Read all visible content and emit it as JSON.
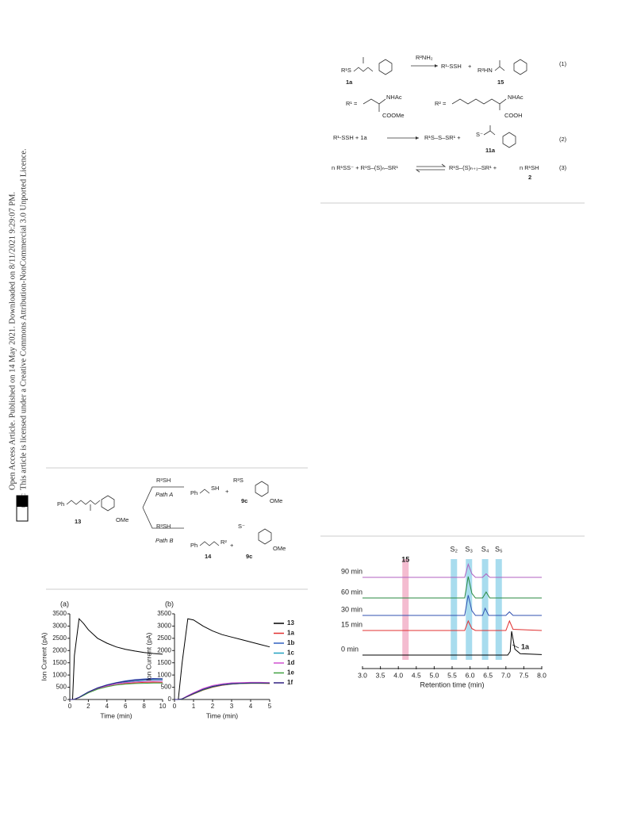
{
  "side_note": {
    "line1": "Open Access Article. Published on 14 May 2021. Downloaded on 8/11/2021 9:29:07 PM.",
    "line2": "This article is licensed under a Creative Commons Attribution-NonCommercial 3.0 Unported Licence.",
    "badge": "BY-NC"
  },
  "scheme_top": {
    "eq1": {
      "reactant": "R¹S",
      "reactant_id": "1a",
      "reagent": "R²NH₂",
      "product1": "R¹-SSH",
      "plus": "+",
      "product2": "R²HN",
      "product2_id": "15",
      "number": "(1)"
    },
    "defs": {
      "r1": "R¹ =",
      "r1_group1": "NHAc",
      "r1_group2": "COOMe",
      "r2": "R² =",
      "r2_group1": "NHAc",
      "r2_group2": "COOH"
    },
    "eq2": {
      "left": "R¹-SSH  +  1a",
      "right": "R¹S–S–SR¹  +",
      "anion": "S⁻",
      "product_id": "11a",
      "number": "(2)"
    },
    "eq3": {
      "left": "n R¹SS⁻  +  R¹S–(S)ₙ–SR¹",
      "right": "R¹S–(S)ₙ₊₁–SR¹  +",
      "byproduct": "n R¹SH",
      "byproduct_id": "2",
      "number": "(3)"
    }
  },
  "scheme_bottom": {
    "start": "Ph",
    "start_id": "13",
    "ome1": "OMe",
    "reagent_a": "R²SH",
    "path_a": "Path A",
    "product_a1": "Ph",
    "product_a1_sh": "SH",
    "plus_a": "+",
    "product_a2": "R²S",
    "product_a2_ome": "OMe",
    "product_a2_id": "9c",
    "reagent_b": "R²SH",
    "path_b": "Path B",
    "product_b1": "Ph",
    "product_b1_r": "R²",
    "product_b1_id": "14",
    "plus_b": "+",
    "product_b2": "S⁻",
    "product_b2_ome": "OMe",
    "product_b2_id": "9c"
  },
  "chart_data": [
    {
      "type": "line",
      "panel_label": "(a)",
      "x_label": "Time (min)",
      "y_label": "Ion Current (pA)",
      "x": [
        0,
        0.3,
        0.5,
        1,
        1.5,
        2,
        3,
        4,
        5,
        6,
        7,
        8,
        9,
        10
      ],
      "xlim": [
        0,
        10
      ],
      "xticks": [
        0,
        2,
        4,
        6,
        8,
        10
      ],
      "ylim": [
        0,
        3500
      ],
      "yticks": [
        0,
        500,
        1000,
        1500,
        2000,
        2500,
        3000,
        3500
      ],
      "series": [
        {
          "name": "13",
          "color": "#000000",
          "values": [
            0,
            0,
            1800,
            3300,
            3100,
            2850,
            2500,
            2300,
            2150,
            2050,
            1980,
            1920,
            1880,
            1850
          ]
        },
        {
          "name": "1a",
          "color": "#e03030",
          "values": [
            0,
            0,
            10,
            80,
            180,
            280,
            430,
            530,
            600,
            650,
            680,
            700,
            710,
            700
          ]
        },
        {
          "name": "1b",
          "color": "#3060c0",
          "values": [
            0,
            0,
            10,
            90,
            200,
            310,
            480,
            600,
            690,
            760,
            810,
            840,
            860,
            850
          ]
        },
        {
          "name": "1c",
          "color": "#20a0c0",
          "values": [
            0,
            0,
            10,
            85,
            190,
            300,
            460,
            570,
            650,
            710,
            750,
            780,
            800,
            800
          ]
        },
        {
          "name": "1d",
          "color": "#d050d0",
          "values": [
            0,
            0,
            10,
            80,
            180,
            290,
            450,
            560,
            640,
            690,
            720,
            740,
            750,
            750
          ]
        },
        {
          "name": "1e",
          "color": "#40a040",
          "values": [
            0,
            0,
            10,
            75,
            170,
            270,
            420,
            520,
            590,
            630,
            650,
            660,
            670,
            670
          ]
        },
        {
          "name": "1f",
          "color": "#302080",
          "values": [
            0,
            0,
            10,
            85,
            195,
            305,
            470,
            590,
            680,
            740,
            790,
            820,
            840,
            840
          ]
        }
      ]
    },
    {
      "type": "line",
      "panel_label": "(b)",
      "x_label": "Time (min)",
      "y_label": "Ion Current (pA)",
      "legend": true,
      "x": [
        0,
        0.2,
        0.4,
        0.7,
        1,
        1.5,
        2,
        2.5,
        3,
        3.5,
        4,
        4.5,
        5
      ],
      "xlim": [
        0,
        5
      ],
      "xticks": [
        0,
        1,
        2,
        3,
        4,
        5
      ],
      "ylim": [
        0,
        3500
      ],
      "yticks": [
        0,
        500,
        1000,
        1500,
        2000,
        2500,
        3000,
        3500
      ],
      "series": [
        {
          "name": "13",
          "color": "#000000",
          "values": [
            0,
            0,
            1500,
            3300,
            3250,
            3000,
            2800,
            2650,
            2550,
            2450,
            2350,
            2250,
            2150
          ]
        },
        {
          "name": "1a",
          "color": "#e03030",
          "values": [
            0,
            0,
            20,
            120,
            220,
            380,
            500,
            580,
            630,
            650,
            660,
            660,
            650
          ]
        },
        {
          "name": "1b",
          "color": "#3060c0",
          "values": [
            0,
            0,
            25,
            140,
            250,
            420,
            540,
            610,
            650,
            670,
            680,
            680,
            680
          ]
        },
        {
          "name": "1c",
          "color": "#20a0c0",
          "values": [
            0,
            0,
            20,
            130,
            240,
            400,
            520,
            600,
            640,
            660,
            670,
            670,
            670
          ]
        },
        {
          "name": "1d",
          "color": "#d050d0",
          "values": [
            0,
            0,
            30,
            160,
            280,
            450,
            570,
            640,
            680,
            690,
            700,
            700,
            690
          ]
        },
        {
          "name": "1e",
          "color": "#40a040",
          "values": [
            0,
            0,
            20,
            125,
            230,
            390,
            510,
            590,
            630,
            650,
            660,
            660,
            660
          ]
        },
        {
          "name": "1f",
          "color": "#302080",
          "values": [
            0,
            0,
            25,
            135,
            245,
            410,
            530,
            600,
            640,
            660,
            670,
            670,
            670
          ]
        }
      ]
    },
    {
      "type": "chromatogram",
      "x_label": "Retention time (min)",
      "annotation": "1a",
      "xlim": [
        3,
        8
      ],
      "xticks": [
        {
          "value": 3,
          "label": "3.0"
        },
        {
          "value": 3.5,
          "label": "3.5"
        },
        {
          "value": 4,
          "label": "4.0"
        },
        {
          "value": 4.5,
          "label": "4.5"
        },
        {
          "value": 5,
          "label": "5.0"
        },
        {
          "value": 5.5,
          "label": "5.5"
        },
        {
          "value": 6,
          "label": "6.0"
        },
        {
          "value": 6.5,
          "label": "6.5"
        },
        {
          "value": 7,
          "label": "7.0"
        },
        {
          "value": 7.5,
          "label": "7.5"
        },
        {
          "value": 8,
          "label": "8.0"
        }
      ],
      "bands": [
        {
          "label": "15",
          "x": 4.2,
          "color": "#f4bcd0"
        },
        {
          "label": "S₂",
          "x": 5.55,
          "color": "#a8dcee"
        },
        {
          "label": "S₃",
          "x": 5.97,
          "color": "#a8dcee"
        },
        {
          "label": "S₄",
          "x": 6.42,
          "color": "#a8dcee"
        },
        {
          "label": "S₅",
          "x": 6.8,
          "color": "#a8dcee"
        }
      ],
      "series": [
        {
          "name": "90 min",
          "color": "#b060c0",
          "x": [
            3.0,
            5.85,
            5.95,
            6.05,
            6.15,
            6.35,
            6.45,
            6.55,
            8.0
          ],
          "values": [
            0,
            0,
            55,
            15,
            0,
            0,
            15,
            0,
            0
          ]
        },
        {
          "name": "60 min",
          "color": "#2a8a40",
          "x": [
            3.0,
            5.85,
            5.95,
            6.05,
            6.15,
            6.35,
            6.45,
            6.55,
            8.0
          ],
          "values": [
            0,
            0,
            90,
            20,
            0,
            0,
            25,
            0,
            0
          ]
        },
        {
          "name": "30 min",
          "color": "#3050b0",
          "x": [
            3.0,
            5.85,
            5.95,
            6.05,
            6.15,
            6.35,
            6.42,
            6.52,
            7.0,
            7.1,
            7.2,
            8.0
          ],
          "values": [
            0,
            0,
            85,
            20,
            0,
            0,
            30,
            0,
            0,
            15,
            0,
            0
          ]
        },
        {
          "name": "15 min",
          "color": "#e03030",
          "x": [
            3.0,
            5.85,
            5.95,
            6.05,
            6.15,
            7.0,
            7.1,
            7.2,
            8.0
          ],
          "values": [
            0,
            0,
            40,
            8,
            0,
            0,
            40,
            5,
            0
          ]
        },
        {
          "name": "0 min",
          "color": "#000000",
          "x": [
            3.0,
            7.05,
            7.12,
            7.16,
            7.25,
            7.4,
            8.0
          ],
          "values": [
            0,
            0,
            15,
            100,
            25,
            6,
            2
          ]
        }
      ]
    }
  ]
}
